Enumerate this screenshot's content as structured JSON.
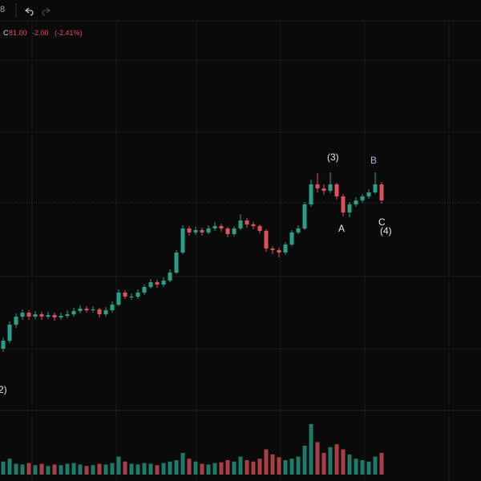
{
  "chart_data": {
    "type": "candlestick",
    "header": {
      "close_prefix": "C",
      "close": "81.00",
      "change": "-2.00",
      "change_pct": "(-2.41%)"
    },
    "annotations": [
      "(3)",
      "B",
      "A",
      "C",
      "(4)",
      "2)"
    ],
    "ylim": [
      55,
      103
    ],
    "volume_ylim": [
      0,
      80
    ],
    "up_color": "#26a18a",
    "down_color": "#e0505c",
    "open": [
      62.5,
      63.5,
      65.5,
      66.5,
      67,
      66.5,
      66.8,
      66.5,
      66.7,
      66.4,
      66.6,
      66.8,
      67.2,
      67.5,
      67.3,
      67.4,
      66.8,
      67.3,
      68,
      69.5,
      69,
      69,
      69.5,
      70.2,
      70.8,
      70.5,
      71,
      72,
      74.5,
      77.5,
      77,
      77.3,
      77,
      77.5,
      77.8,
      77.5,
      76.8,
      77.5,
      78.5,
      78,
      77.8,
      77.2,
      75,
      74.8,
      74.5,
      75.5,
      77,
      77.5,
      80.5,
      83,
      82.5,
      82.2,
      83,
      81.5,
      79.5,
      80.5,
      81,
      81.5,
      82,
      83
    ],
    "high": [
      63.9,
      65.9,
      66.9,
      67.4,
      67.3,
      67.2,
      67.1,
      67.1,
      67,
      67,
      67.3,
      67.6,
      67.9,
      67.8,
      67.8,
      67.6,
      67.7,
      68.4,
      69.9,
      69.8,
      69.4,
      69.9,
      70.5,
      71.2,
      71.1,
      71.4,
      72.4,
      74.8,
      77.9,
      77.8,
      77.7,
      77.6,
      77.9,
      78.3,
      78.1,
      77.7,
      77.8,
      79.3,
      78.8,
      78.3,
      78,
      77.4,
      75.3,
      75.1,
      75.8,
      77.3,
      77.9,
      80.8,
      83.6,
      84.4,
      83,
      84.5,
      83.2,
      81.8,
      80.8,
      81.4,
      81.8,
      82.4,
      84.5,
      83.3
    ],
    "low": [
      62.1,
      63.2,
      65.1,
      66.1,
      66.1,
      66.2,
      66.1,
      66.2,
      66,
      66.1,
      66.3,
      66.5,
      66.9,
      67,
      67,
      66.4,
      66.5,
      67,
      67.8,
      68.7,
      68.6,
      68.7,
      69.2,
      70,
      70.1,
      70.2,
      70.8,
      71.8,
      74.3,
      76.6,
      76.7,
      76.6,
      76.8,
      77.2,
      77.1,
      76.4,
      76.5,
      77.3,
      77.6,
      77.4,
      76.9,
      74.6,
      74.3,
      73.9,
      74.2,
      75.3,
      76.8,
      77.3,
      80.2,
      82,
      81.7,
      81.9,
      81.1,
      79,
      78.9,
      80.2,
      80.7,
      81.2,
      81.8,
      80.6
    ],
    "close": [
      63.5,
      65.5,
      66.5,
      67,
      66.5,
      66.8,
      66.5,
      66.7,
      66.4,
      66.6,
      66.8,
      67.2,
      67.5,
      67.3,
      67.4,
      66.8,
      67.3,
      68,
      69.5,
      69,
      69,
      69.5,
      70.2,
      70.8,
      70.5,
      71,
      72,
      74.5,
      77.5,
      77,
      77.3,
      77,
      77.5,
      77.8,
      77.5,
      76.8,
      77.5,
      78.5,
      78,
      77.8,
      77.2,
      75,
      74.8,
      74.5,
      75.5,
      77,
      77.5,
      80.5,
      83,
      82.5,
      82.2,
      83,
      81.5,
      79.5,
      80.5,
      81,
      81.5,
      82,
      83,
      81
    ],
    "volume": [
      18,
      22,
      15,
      14,
      16,
      13,
      15,
      12,
      14,
      13,
      15,
      16,
      14,
      12,
      13,
      15,
      14,
      16,
      25,
      18,
      15,
      14,
      16,
      15,
      13,
      16,
      18,
      20,
      30,
      22,
      18,
      15,
      14,
      16,
      17,
      20,
      18,
      25,
      20,
      18,
      22,
      35,
      28,
      24,
      20,
      22,
      25,
      40,
      70,
      45,
      30,
      38,
      42,
      35,
      28,
      22,
      20,
      18,
      25,
      30
    ]
  }
}
